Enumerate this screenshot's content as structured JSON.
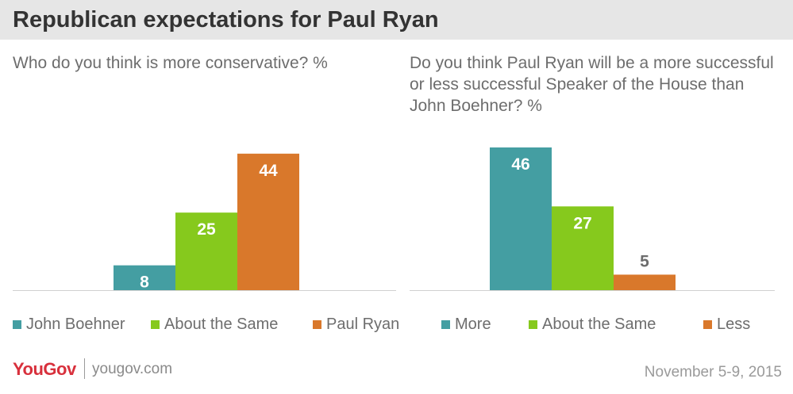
{
  "title": "Republican expectations for Paul Ryan",
  "colors": {
    "teal": "#449ea2",
    "green": "#86c91d",
    "orange": "#d9782b",
    "header_bg": "#e6e6e6",
    "brand_red": "#d8303c"
  },
  "chart_data": [
    {
      "type": "bar",
      "title": "Who do you think is more conservative? %",
      "categories": [
        "John Boehner",
        "About the Same",
        "Paul Ryan"
      ],
      "values": [
        8,
        25,
        44
      ],
      "colors": [
        "#449ea2",
        "#86c91d",
        "#d9782b"
      ],
      "legend": [
        "John Boehner",
        "About the Same",
        "Paul Ryan"
      ],
      "legend_position": "bottom",
      "ylim": [
        0,
        46
      ],
      "grid": false
    },
    {
      "type": "bar",
      "title": "Do you think Paul Ryan will be a more successful or less successful Speaker of the House than John Boehner? %",
      "categories": [
        "More",
        "About the Same",
        "Less"
      ],
      "values": [
        46,
        27,
        5
      ],
      "colors": [
        "#449ea2",
        "#86c91d",
        "#d9782b"
      ],
      "legend": [
        "More",
        "About the Same",
        "Less"
      ],
      "legend_position": "bottom",
      "ylim": [
        0,
        46
      ],
      "grid": false
    }
  ],
  "footer": {
    "logo": "YouGov",
    "site": "yougov.com",
    "date": "November 5-9, 2015"
  }
}
